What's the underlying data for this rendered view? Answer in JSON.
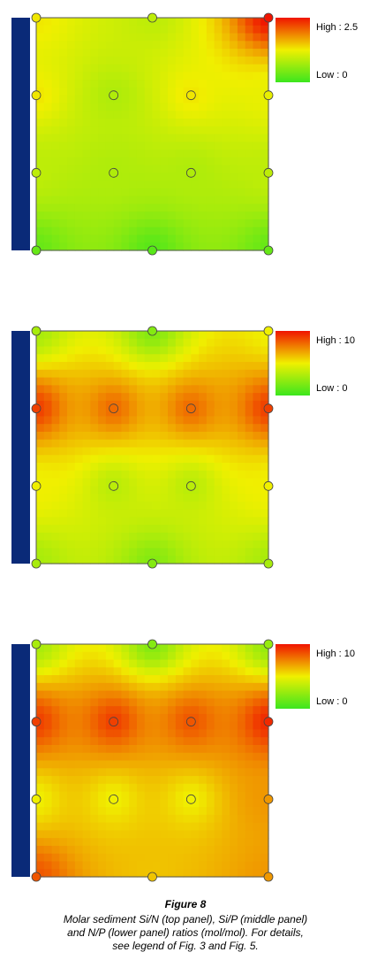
{
  "chart_data": [
    {
      "type": "contour",
      "legend_high": "High : 2.5",
      "legend_low": "Low : 0",
      "zlim": [
        0,
        2.5
      ],
      "rows": [
        [
          1.3,
          0.9,
          2.5
        ],
        [
          1.3,
          0.8,
          1.3,
          1.2
        ],
        [
          0.9,
          0.8,
          0.8,
          0.9
        ],
        [
          0.3,
          0.2,
          0.3
        ]
      ]
    },
    {
      "type": "contour",
      "legend_high": "High : 10",
      "legend_low": "Low : 0",
      "zlim": [
        0,
        10
      ],
      "rows": [
        [
          3,
          2,
          5
        ],
        [
          9,
          8,
          8,
          9
        ],
        [
          5,
          3.5,
          3.5,
          5
        ],
        [
          3,
          2,
          3
        ]
      ]
    },
    {
      "type": "contour",
      "legend_high": "High : 10",
      "legend_low": "Low : 0",
      "zlim": [
        0,
        10
      ],
      "rows": [
        [
          3,
          2,
          2.5
        ],
        [
          9,
          9,
          8.5,
          9.5
        ],
        [
          5,
          5,
          5,
          7
        ],
        [
          8.5,
          6,
          7
        ]
      ]
    }
  ],
  "caption": {
    "title": "Figure 8",
    "lines": [
      "Molar sediment Si/N (top panel), Si/P (middle panel)",
      "and N/P (lower panel) ratios (mol/mol). For details,",
      "see legend of Fig. 3 and Fig. 5."
    ]
  }
}
